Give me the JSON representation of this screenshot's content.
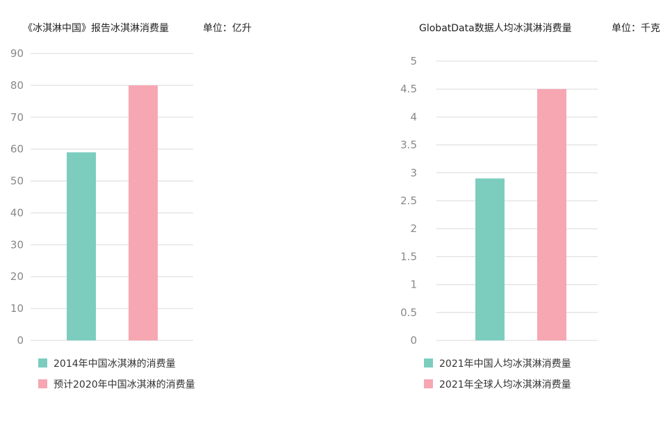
{
  "chart_data": [
    {
      "type": "bar",
      "title": "《冰淇淋中国》报告冰淇淋消费量",
      "unit": "单位：亿升",
      "ylim": [
        0,
        90
      ],
      "yticks": [
        0,
        10,
        20,
        30,
        40,
        50,
        60,
        70,
        80,
        90
      ],
      "grid": true,
      "legend_position": "bottom",
      "series": [
        {
          "name": "2014年中国冰淇淋的消费量",
          "value": 59,
          "color": "#7dcdbf"
        },
        {
          "name": "预计2020年中国冰淇淋的消费量",
          "value": 80,
          "color": "#f7a7b2"
        }
      ]
    },
    {
      "type": "bar",
      "title": "GlobatData数据人均冰淇淋消费量",
      "unit": "单位：千克",
      "ylim": [
        0,
        5
      ],
      "yticks": [
        0,
        0.5,
        1,
        1.5,
        2,
        2.5,
        3,
        3.5,
        4,
        4.5,
        5
      ],
      "grid": true,
      "legend_position": "bottom",
      "series": [
        {
          "name": "2021年中国人均冰淇淋消费量",
          "value": 2.9,
          "color": "#7dcdbf"
        },
        {
          "name": "2021年全球人均冰淇淋消费量",
          "value": 4.5,
          "color": "#f7a7b2"
        }
      ]
    }
  ]
}
